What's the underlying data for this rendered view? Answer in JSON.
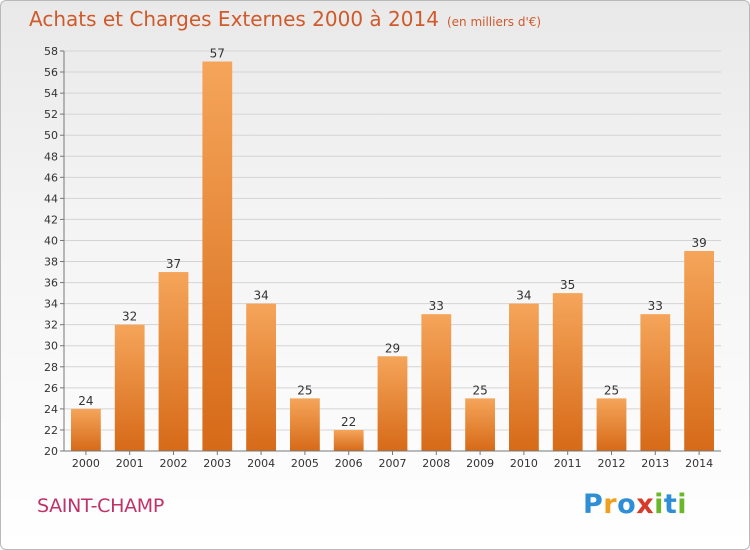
{
  "title": "Achats et Charges Externes 2000 à 2014",
  "subtitle": "(en milliers d'€)",
  "place_name": "SAINT-CHAMP",
  "logo": {
    "letters": [
      "P",
      "r",
      "o",
      "x",
      "i",
      "t",
      "i"
    ],
    "colors": [
      "#2e8fd6",
      "#f0a020",
      "#2e8fd6",
      "#d83a2a",
      "#6ab82a",
      "#2e8fd6",
      "#6ab82a"
    ]
  },
  "colors": {
    "bar_light": "#f5a55a",
    "bar_dark": "#d66a18",
    "title": "#d05a2a",
    "place": "#c0326a",
    "grid": "#d4d4d4"
  },
  "chart_data": {
    "type": "bar",
    "title": "Achats et Charges Externes 2000 à 2014",
    "subtitle": "(en milliers d'€)",
    "categories": [
      "2000",
      "2001",
      "2002",
      "2003",
      "2004",
      "2005",
      "2006",
      "2007",
      "2008",
      "2009",
      "2010",
      "2011",
      "2012",
      "2013",
      "2014"
    ],
    "values": [
      24,
      32,
      37,
      57,
      34,
      25,
      22,
      29,
      33,
      25,
      34,
      35,
      25,
      33,
      39
    ],
    "ylim": [
      20,
      58
    ],
    "ytick_step": 2,
    "grid": true,
    "legend": "none",
    "data_labels": true
  }
}
